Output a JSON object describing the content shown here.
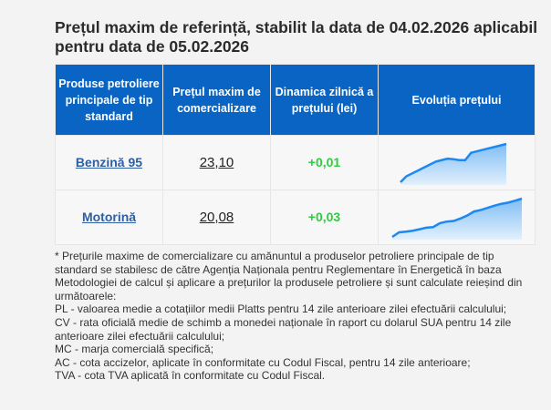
{
  "title": "Prețul maxim de referință, stabilit la data de 04.02.2026 aplicabil pentru data de 05.02.2026",
  "table": {
    "headers": [
      "Produse petroliere principale de tip standard",
      "Prețul maxim de comercializare",
      "Dinamica zilnică a prețului (lei)",
      "Evoluția prețului"
    ],
    "rows": [
      {
        "product": "Benzină 95",
        "price": "23,10",
        "change": "+0,01",
        "trend": [
          0,
          2,
          3,
          4,
          5,
          6,
          7,
          7.5,
          8,
          7.8,
          7.5,
          7.5,
          10,
          10.5,
          11,
          11.5,
          12,
          12.5,
          13
        ]
      },
      {
        "product": "Motorină",
        "price": "20,08",
        "change": "+0,03",
        "trend": [
          0,
          1.5,
          1.7,
          2,
          2.5,
          3,
          3.2,
          4.5,
          5,
          5.2,
          6,
          7,
          8.3,
          8.8,
          9.5,
          10.2,
          10.8,
          11.2,
          11.8,
          12.5
        ]
      }
    ]
  },
  "colors": {
    "header_bg": "#0a64c4",
    "link": "#2f5ea3",
    "positive": "#2ecc40",
    "spark_line": "#1e88f0"
  },
  "note_lines": [
    "* Prețurile maxime de comercializare cu amănuntul a produselor petroliere principale de tip",
    "standard se stabilesc de către Agenția Naționala pentru Reglementare în Energetică în baza",
    "Metodologiei de calcul și aplicare a prețurilor la produsele petroliere și sunt calculate reieșind din",
    "următoarele:",
    "PL - valoarea medie a cotațiilor medii Platts pentru 14 zile anterioare zilei efectuării calculului;",
    "CV - rata oficială medie de schimb a monedei naționale în raport cu dolarul SUA pentru 14 zile",
    "anterioare zilei efectuării calculului;",
    "MC - marja comercială specifică;",
    "AC - cota accizelor, aplicate în conformitate cu Codul Fiscal, pentru 14 zile anterioare;",
    "TVA - cota TVA aplicată în conformitate cu Codul Fiscal."
  ]
}
